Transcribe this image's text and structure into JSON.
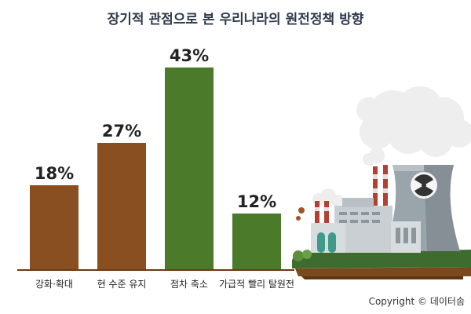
{
  "title": "장기적 관점으로 본 우리나라의 원전정책 방향",
  "copyright": "Copyright © 데이터솜",
  "colors": {
    "brown": "#8a4f21",
    "green": "#4a7a2a",
    "text": "#222222",
    "baseline": "#6b3a12"
  },
  "chart_data": {
    "type": "bar",
    "title": "장기적 관점으로 본 우리나라의 원전정책 방향",
    "categories": [
      "강화·확대",
      "현 수준 유지",
      "점차 축소",
      "가급적 빨리 탈원전"
    ],
    "values": [
      18,
      27,
      43,
      12
    ],
    "value_labels": [
      "18%",
      "27%",
      "43%",
      "12%"
    ],
    "bar_colors": [
      "brown",
      "brown",
      "green",
      "green"
    ],
    "unit": "%",
    "ylim": [
      0,
      43
    ],
    "grid": false,
    "legend": "none"
  },
  "illustration": {
    "subject": "nuclear-power-plant-icon",
    "symbol": "radiation-icon"
  }
}
